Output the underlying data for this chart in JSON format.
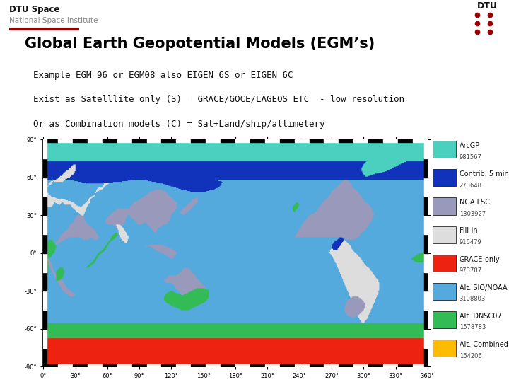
{
  "title": "Global Earth Geopotential Models (EGM’s)",
  "subtitle_lines": [
    "Example EGM 96 or EGM08 also EIGEN 6S or EIGEN 6C",
    "Exist as Satelllite only (S) = GRACE/GOCE/LAGEOS ETC  - low resolution",
    "Or as Combination models (C) = Sat+Land/ship/altimetery"
  ],
  "header_org": "DTU Space",
  "header_sub": "National Space Institute",
  "bg_color": "#ffffff",
  "title_color": "#000000",
  "title_fontsize": 15,
  "subtitle_fontsize": 9,
  "dtu_color": "#990000",
  "legend_entries": [
    {
      "label": "ArcGP",
      "count": "981567",
      "color": "#4bcfbe"
    },
    {
      "label": "Contrib. 5 min",
      "count": "273648",
      "color": "#1133bb"
    },
    {
      "label": "NGA LSC",
      "count": "1303927",
      "color": "#9999bb"
    },
    {
      "label": "Fill-in",
      "count": "916479",
      "color": "#dddddd"
    },
    {
      "label": "GRACE-only",
      "count": "973787",
      "color": "#ee2211"
    },
    {
      "label": "Alt. SIO/NOAA",
      "count": "3108803",
      "color": "#55aadd"
    },
    {
      "label": "Alt. DNSC07",
      "count": "1578783",
      "color": "#33bb55"
    },
    {
      "label": "Alt. Combined",
      "count": "164206",
      "color": "#ffbb00"
    }
  ],
  "map_ocean": "#55aadd",
  "map_arcgp": "#4bcfbe",
  "map_grace": "#ee2211",
  "map_contrib": "#1133bb",
  "map_nga": "#9999bb",
  "map_fillin": "#dddddd",
  "map_dnsc": "#33bb55",
  "map_comb": "#ffbb00",
  "map_xtick_labels": [
    "0°",
    "30°",
    "60°",
    "90°",
    "120°",
    "150°",
    "180°",
    "210°",
    "240°",
    "270°",
    "300°",
    "330°",
    "360°"
  ],
  "map_ytick_labels": [
    "90°",
    "60°",
    "30°",
    "0°",
    "-30°",
    "-60°",
    "-90°"
  ]
}
